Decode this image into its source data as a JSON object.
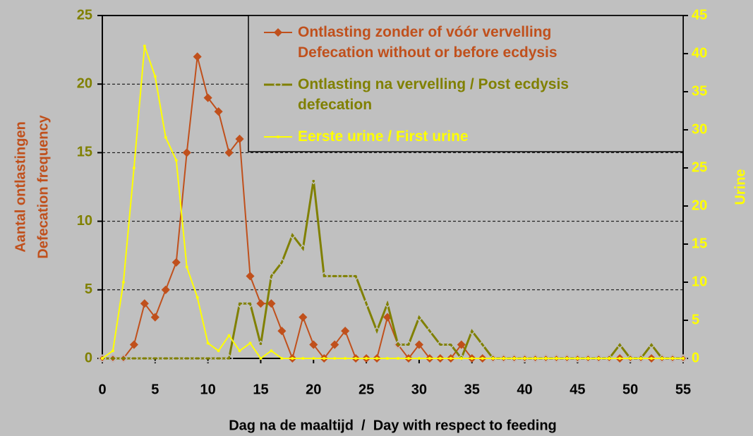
{
  "chart_data": {
    "type": "line",
    "x_label": "Dag na de maaltijd  /  Day with respect to feeding",
    "y_label": [
      "Aantal ontlastingen",
      "Defecation frequency"
    ],
    "y2_label": "Urine",
    "x": [
      0,
      1,
      2,
      3,
      4,
      5,
      6,
      7,
      8,
      9,
      10,
      11,
      12,
      13,
      14,
      15,
      16,
      17,
      18,
      19,
      20,
      21,
      22,
      23,
      24,
      25,
      26,
      27,
      28,
      29,
      30,
      31,
      32,
      33,
      34,
      35,
      36,
      37,
      38,
      39,
      40,
      41,
      42,
      43,
      44,
      45,
      46,
      47,
      48,
      49,
      50,
      51,
      52,
      53,
      54,
      55
    ],
    "xlim": [
      0,
      55
    ],
    "xticks": [
      0,
      5,
      10,
      15,
      20,
      25,
      30,
      35,
      40,
      45,
      50,
      55
    ],
    "ylim": [
      0,
      25
    ],
    "yticks": [
      0,
      5,
      10,
      15,
      20,
      25
    ],
    "y2lim": [
      0,
      45
    ],
    "y2ticks": [
      0,
      5,
      10,
      15,
      20,
      25,
      30,
      35,
      40,
      45
    ],
    "grid": true,
    "legend": "top-right",
    "series": [
      {
        "name": "Ontlasting zonder of vóór vervelling\nDefecation without or before ecdysis",
        "color": "#c0501c",
        "marker": "filled-diamond",
        "values": [
          0,
          0,
          0,
          1,
          4,
          3,
          5,
          7,
          15,
          22,
          19,
          18,
          15,
          16,
          6,
          4,
          4,
          2,
          0,
          3,
          1,
          0,
          1,
          2,
          0,
          0,
          0,
          3,
          1,
          0,
          1,
          0,
          0,
          0,
          1,
          0,
          0,
          0,
          0,
          0,
          0,
          0,
          0,
          0,
          0,
          0,
          0,
          0,
          0,
          0,
          0,
          0,
          0,
          0,
          0,
          0
        ]
      },
      {
        "name": "Ontlasting na vervelling / Post ecdysis\ndefecation",
        "color": "#808000",
        "marker": "open-diamond",
        "values": [
          0,
          0,
          0,
          0,
          0,
          0,
          0,
          0,
          0,
          0,
          0,
          0,
          0,
          4,
          4,
          1,
          6,
          7,
          9,
          8,
          13,
          6,
          6,
          6,
          6,
          4,
          2,
          4,
          1,
          1,
          3,
          2,
          1,
          1,
          0,
          2,
          1,
          0,
          0,
          0,
          0,
          0,
          0,
          0,
          0,
          0,
          0,
          0,
          0,
          1,
          0,
          0,
          1,
          0,
          0,
          0
        ]
      },
      {
        "name": "Eerste urine / First urine",
        "color": "#ffff00",
        "marker": "dot",
        "axis": "y2",
        "values": [
          0,
          1,
          10,
          25,
          41,
          37,
          29,
          26,
          12,
          8,
          2,
          1,
          3,
          1,
          2,
          0,
          1,
          0,
          0,
          0,
          0,
          0,
          0,
          0,
          0,
          0,
          0,
          0,
          0,
          0,
          0,
          0,
          0,
          0,
          0,
          0,
          0,
          0,
          0,
          0,
          0,
          0,
          0,
          0,
          0,
          0,
          0,
          0,
          0,
          0,
          0,
          0,
          0,
          0,
          0,
          0
        ]
      }
    ]
  }
}
